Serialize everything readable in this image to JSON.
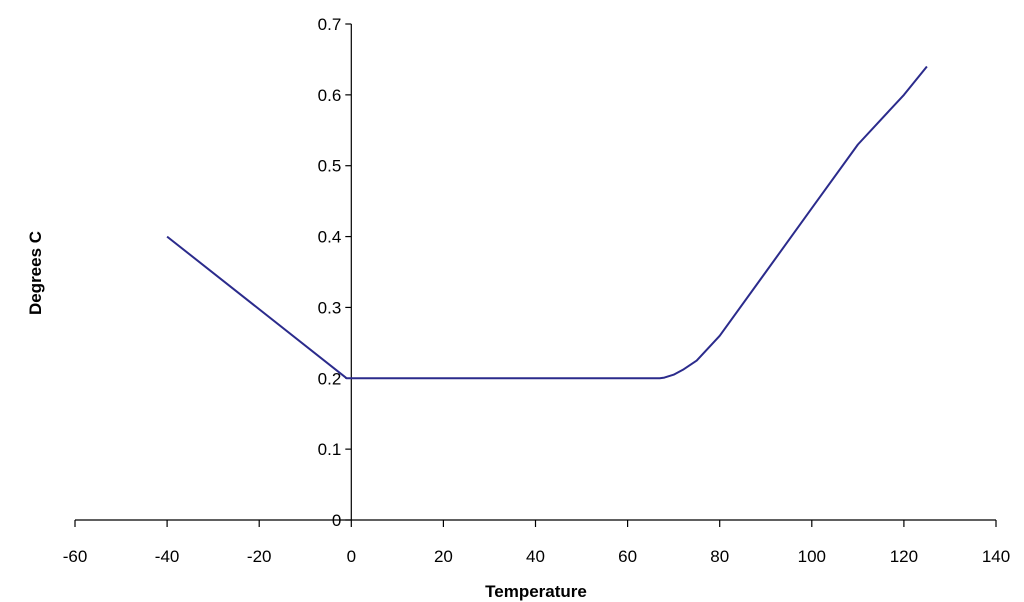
{
  "chart_data": {
    "type": "line",
    "title": "",
    "xlabel": "Temperature",
    "ylabel": "Degrees C",
    "xlim": [
      -60,
      140
    ],
    "ylim": [
      0,
      0.7
    ],
    "x_ticks": [
      "-60",
      "-40",
      "-20",
      "0",
      "20",
      "40",
      "60",
      "80",
      "100",
      "120",
      "140"
    ],
    "y_ticks": [
      "0",
      "0.1",
      "0.2",
      "0.3",
      "0.4",
      "0.5",
      "0.6",
      "0.7"
    ],
    "grid": false,
    "legend": "none",
    "series": [
      {
        "color": "#2b2b8c",
        "x": [
          -40,
          -1,
          0,
          67,
          68,
          70,
          72,
          75,
          80,
          90,
          100,
          110,
          120,
          125
        ],
        "y": [
          0.4,
          0.2,
          0.2,
          0.2,
          0.201,
          0.205,
          0.212,
          0.225,
          0.26,
          0.35,
          0.44,
          0.53,
          0.6,
          0.64
        ]
      }
    ]
  }
}
